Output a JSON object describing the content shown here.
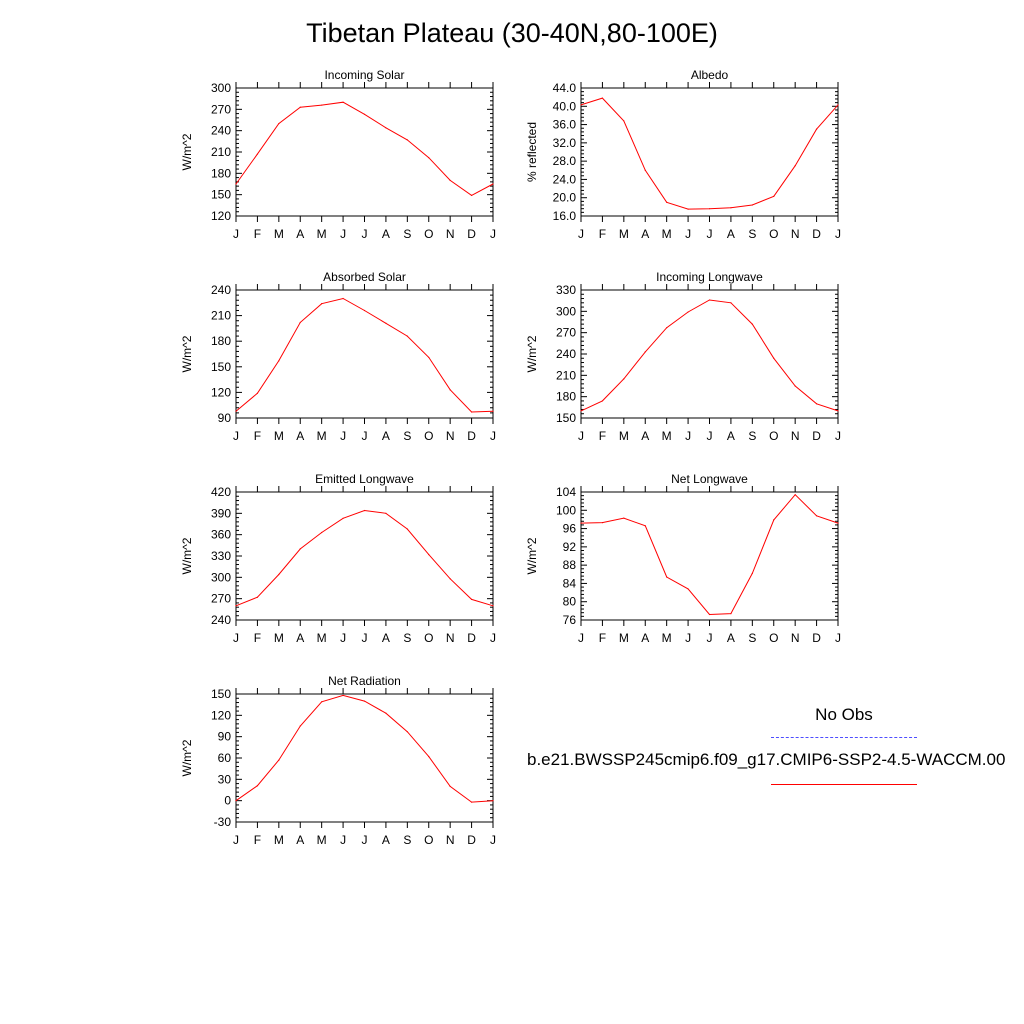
{
  "page": {
    "title": "Tibetan Plateau (30-40N,80-100E)"
  },
  "legend": {
    "obs_label": "No Obs",
    "model_label": "b.e21.BWSSP245cmip6.f09_g17.CMIP6-SSP2-4.5-WACCM.00",
    "obs_color": "#4d4dff",
    "model_color": "#ff0000"
  },
  "colors": {
    "line": "#ff0000",
    "axis": "#000000"
  },
  "chart_data": [
    {
      "type": "line",
      "title": "Incoming Solar",
      "ylabel": "W/m^2",
      "categories": [
        "J",
        "F",
        "M",
        "A",
        "M",
        "J",
        "J",
        "A",
        "S",
        "O",
        "N",
        "D",
        "J"
      ],
      "ylim": [
        120,
        300
      ],
      "yticks": [
        "120",
        "150",
        "180",
        "210",
        "240",
        "270",
        "300"
      ],
      "series": [
        {
          "values": [
            165,
            207,
            250,
            273,
            276,
            280,
            263,
            244,
            227,
            202,
            170,
            149,
            165
          ]
        }
      ]
    },
    {
      "type": "line",
      "title": "Albedo",
      "ylabel": "% reflected",
      "categories": [
        "J",
        "F",
        "M",
        "A",
        "M",
        "J",
        "J",
        "A",
        "S",
        "O",
        "N",
        "D",
        "J"
      ],
      "ylim": [
        16,
        44
      ],
      "yticks": [
        "16.0",
        "20.0",
        "24.0",
        "28.0",
        "32.0",
        "36.0",
        "40.0",
        "44.0"
      ],
      "series": [
        {
          "values": [
            40.3,
            41.8,
            36.8,
            26.0,
            19.0,
            17.5,
            17.6,
            17.8,
            18.4,
            20.3,
            27.0,
            35.0,
            40.3
          ]
        }
      ]
    },
    {
      "type": "line",
      "title": "Absorbed Solar",
      "ylabel": "W/m^2",
      "categories": [
        "J",
        "F",
        "M",
        "A",
        "M",
        "J",
        "J",
        "A",
        "S",
        "O",
        "N",
        "D",
        "J"
      ],
      "ylim": [
        90,
        240
      ],
      "yticks": [
        "90",
        "120",
        "150",
        "180",
        "210",
        "240"
      ],
      "series": [
        {
          "values": [
            98,
            119,
            157,
            202,
            224,
            230,
            216,
            201,
            186,
            161,
            123,
            97,
            98
          ]
        }
      ]
    },
    {
      "type": "line",
      "title": "Incoming Longwave",
      "ylabel": "W/m^2",
      "categories": [
        "J",
        "F",
        "M",
        "A",
        "M",
        "J",
        "J",
        "A",
        "S",
        "O",
        "N",
        "D",
        "J"
      ],
      "ylim": [
        150,
        330
      ],
      "yticks": [
        "150",
        "180",
        "210",
        "240",
        "270",
        "300",
        "330"
      ],
      "series": [
        {
          "values": [
            160,
            174,
            205,
            243,
            277,
            299,
            316,
            312,
            282,
            234,
            195,
            170,
            160
          ]
        }
      ]
    },
    {
      "type": "line",
      "title": "Emitted Longwave",
      "ylabel": "W/m^2",
      "categories": [
        "J",
        "F",
        "M",
        "A",
        "M",
        "J",
        "J",
        "A",
        "S",
        "O",
        "N",
        "D",
        "J"
      ],
      "ylim": [
        240,
        420
      ],
      "yticks": [
        "240",
        "270",
        "300",
        "330",
        "360",
        "390",
        "420"
      ],
      "series": [
        {
          "values": [
            260,
            272,
            304,
            340,
            363,
            383,
            394,
            390,
            368,
            332,
            298,
            269,
            260
          ]
        }
      ]
    },
    {
      "type": "line",
      "title": "Net Longwave",
      "ylabel": "W/m^2",
      "categories": [
        "J",
        "F",
        "M",
        "A",
        "M",
        "J",
        "J",
        "A",
        "S",
        "O",
        "N",
        "D",
        "J"
      ],
      "ylim": [
        76,
        104
      ],
      "yticks": [
        "76",
        "80",
        "84",
        "88",
        "92",
        "96",
        "100",
        "104"
      ],
      "series": [
        {
          "values": [
            97.2,
            97.3,
            98.3,
            96.6,
            85.4,
            82.8,
            77.2,
            77.4,
            86.2,
            97.9,
            103.4,
            98.8,
            97.2
          ]
        }
      ]
    },
    {
      "type": "line",
      "title": "Net Radiation",
      "ylabel": "W/m^2",
      "categories": [
        "J",
        "F",
        "M",
        "A",
        "M",
        "J",
        "J",
        "A",
        "S",
        "O",
        "N",
        "D",
        "J"
      ],
      "ylim": [
        -30,
        150
      ],
      "yticks": [
        "-30",
        "0",
        "30",
        "60",
        "90",
        "120",
        "150"
      ],
      "series": [
        {
          "values": [
            0,
            21,
            57,
            105,
            139,
            148,
            140,
            123,
            97,
            62,
            20,
            -2,
            0
          ]
        }
      ]
    }
  ]
}
